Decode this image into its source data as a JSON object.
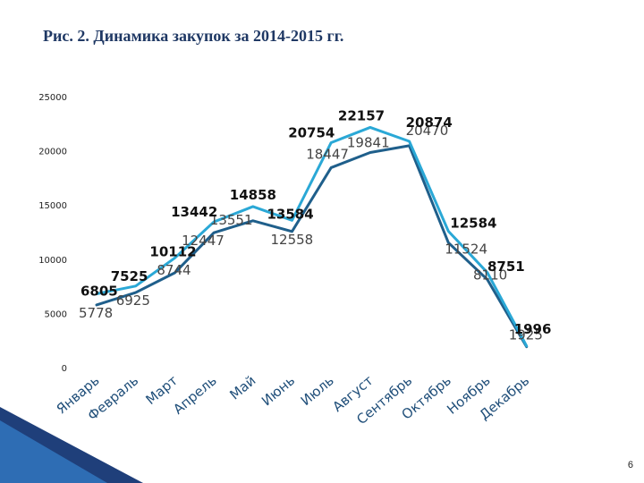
{
  "slide": {
    "title": "Рис. 2. Динамика закупок за 2014-2015 гг.",
    "page_number": "6"
  },
  "chart_data": {
    "type": "line",
    "title": "Рис. 2. Динамика закупок за 2014-2015 гг.",
    "xlabel": "",
    "ylabel": "",
    "ylim": [
      0,
      25000
    ],
    "yticks": [
      0,
      5000,
      10000,
      15000,
      20000,
      25000
    ],
    "grid": false,
    "legend": "none",
    "categories": [
      "Январь",
      "Февраль",
      "Март",
      "Апрель",
      "Май",
      "Июнь",
      "Июль",
      "Август",
      "Сентябрь",
      "Октябрь",
      "Ноябрь",
      "Декабрь"
    ],
    "series": [
      {
        "values": [
          5778,
          6925,
          8744,
          12447,
          13551,
          12558,
          18447,
          19841,
          20470,
          11524,
          8110,
          1925
        ],
        "labels": [
          "5778",
          "6925",
          "8744",
          "12447",
          "13551",
          "12558",
          "18447",
          "19841",
          "20470",
          "11524",
          "8110",
          "1925"
        ],
        "color": "#1f5f8b"
      },
      {
        "values": [
          6805,
          7525,
          10112,
          13442,
          14858,
          13584,
          20754,
          22157,
          20874,
          12584,
          8751,
          1996
        ],
        "labels": [
          "6805",
          "7525",
          "10112",
          "13442",
          "14858",
          "13584",
          "20754",
          "22157",
          "20874",
          "12584",
          "8751",
          "1996"
        ],
        "color": "#2aa8d6"
      }
    ]
  }
}
